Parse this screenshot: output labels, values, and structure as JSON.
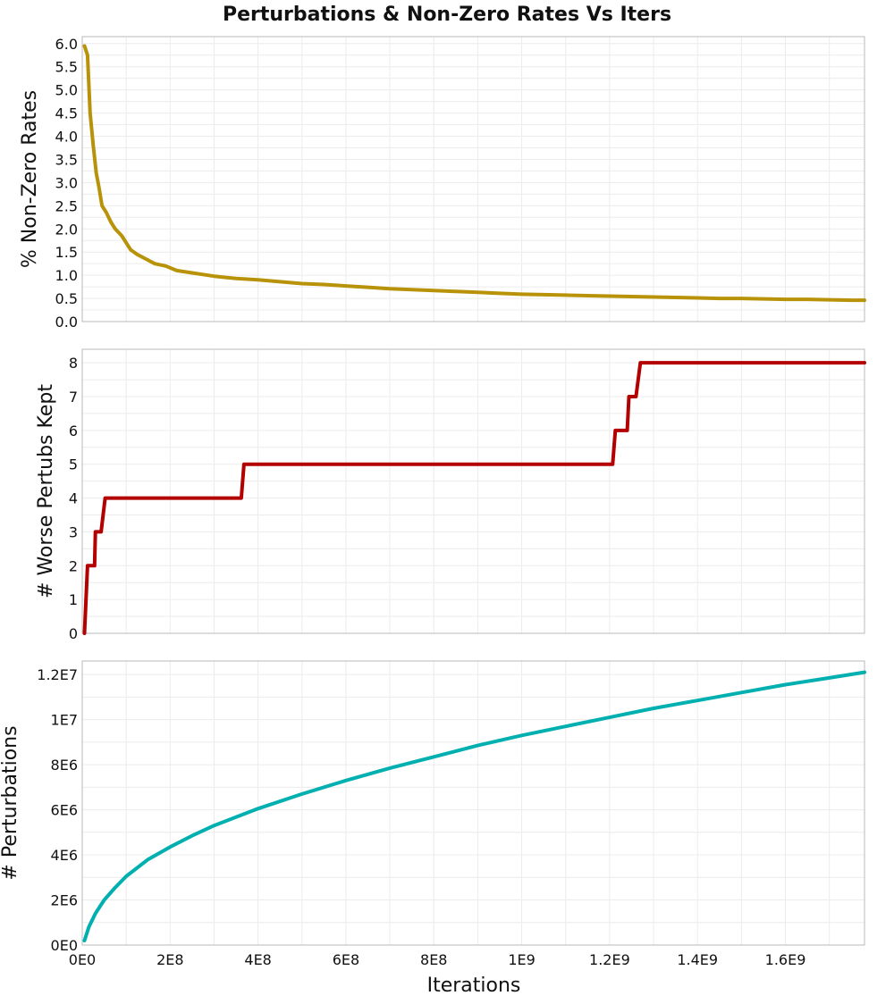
{
  "chart_data": {
    "title": "Perturbations & Non-Zero Rates Vs Iters",
    "shared_x": {
      "label": "Iterations",
      "lim": [
        0,
        1780000000
      ],
      "ticks": [
        0,
        200000000,
        400000000,
        600000000,
        800000000,
        1000000000,
        1200000000,
        1400000000,
        1600000000
      ],
      "tick_labels": [
        "0E0",
        "2E8",
        "4E8",
        "6E8",
        "8E8",
        "1E9",
        "1.2E9",
        "1.4E9",
        "1.6E9"
      ]
    },
    "panels": [
      {
        "type": "line",
        "ylabel": "% Non-Zero Rates",
        "ylim": [
          0,
          6.15
        ],
        "yticks": [
          0,
          0.5,
          1,
          1.5,
          2,
          2.5,
          3,
          3.5,
          4,
          4.5,
          5,
          5.5,
          6
        ],
        "ytick_labels": [
          "0.0",
          "0.5",
          "1.0",
          "1.5",
          "2.0",
          "2.5",
          "3.0",
          "3.5",
          "4.0",
          "4.5",
          "5.0",
          "5.5",
          "6.0"
        ],
        "grid": true,
        "color": "#b8930a",
        "x": [
          5000000,
          12000000,
          18000000,
          25000000,
          32000000,
          38000000,
          45000000,
          55000000,
          65000000,
          75000000,
          90000000,
          110000000,
          125000000,
          145000000,
          165000000,
          190000000,
          215000000,
          250000000,
          300000000,
          350000000,
          400000000,
          450000000,
          500000000,
          550000000,
          600000000,
          650000000,
          700000000,
          750000000,
          800000000,
          850000000,
          900000000,
          950000000,
          1000000000,
          1050000000,
          1100000000,
          1150000000,
          1200000000,
          1250000000,
          1300000000,
          1350000000,
          1400000000,
          1450000000,
          1500000000,
          1550000000,
          1600000000,
          1650000000,
          1700000000,
          1750000000,
          1780000000
        ],
        "y": [
          5.95,
          5.75,
          4.5,
          3.8,
          3.2,
          2.9,
          2.5,
          2.35,
          2.15,
          2.0,
          1.85,
          1.55,
          1.45,
          1.35,
          1.25,
          1.2,
          1.1,
          1.05,
          0.98,
          0.93,
          0.9,
          0.86,
          0.82,
          0.8,
          0.77,
          0.74,
          0.71,
          0.69,
          0.67,
          0.65,
          0.63,
          0.61,
          0.59,
          0.58,
          0.57,
          0.56,
          0.55,
          0.54,
          0.53,
          0.52,
          0.51,
          0.5,
          0.5,
          0.49,
          0.48,
          0.48,
          0.47,
          0.46,
          0.46
        ]
      },
      {
        "type": "line",
        "ylabel": "# Worse Pertubs Kept",
        "ylim": [
          0,
          8.4
        ],
        "yticks": [
          0,
          1,
          2,
          3,
          4,
          5,
          6,
          7,
          8
        ],
        "ytick_labels": [
          "0",
          "1",
          "2",
          "3",
          "4",
          "5",
          "6",
          "7",
          "8"
        ],
        "grid": true,
        "color": "#b30000",
        "x": [
          5000000,
          12000000,
          15000000,
          28000000,
          30000000,
          40000000,
          43000000,
          52000000,
          55000000,
          362000000,
          368000000,
          1207000000,
          1213000000,
          1240000000,
          1244000000,
          1260000000,
          1270000000,
          1780000000
        ],
        "y": [
          0,
          2,
          2,
          2,
          3,
          3,
          3,
          4,
          4,
          4,
          5,
          5,
          6,
          6,
          7,
          7,
          8,
          8
        ]
      },
      {
        "type": "line",
        "ylabel": "# Perturbations",
        "ylim": [
          0,
          12600000
        ],
        "yticks": [
          0,
          2000000,
          4000000,
          6000000,
          8000000,
          10000000,
          12000000
        ],
        "ytick_labels": [
          "0E0",
          "2E6",
          "4E6",
          "6E6",
          "8E6",
          "1E7",
          "1.2E7"
        ],
        "grid": true,
        "color": "#00b0b0",
        "x": [
          5000000,
          15000000,
          30000000,
          50000000,
          75000000,
          100000000,
          150000000,
          200000000,
          250000000,
          300000000,
          400000000,
          500000000,
          600000000,
          700000000,
          800000000,
          900000000,
          1000000000,
          1100000000,
          1200000000,
          1300000000,
          1400000000,
          1500000000,
          1600000000,
          1700000000,
          1780000000
        ],
        "y": [
          200000,
          800000,
          1400000,
          2000000,
          2550000,
          3050000,
          3800000,
          4350000,
          4850000,
          5300000,
          6050000,
          6700000,
          7300000,
          7850000,
          8350000,
          8850000,
          9300000,
          9700000,
          10100000,
          10500000,
          10850000,
          11200000,
          11550000,
          11850000,
          12100000
        ]
      }
    ]
  }
}
